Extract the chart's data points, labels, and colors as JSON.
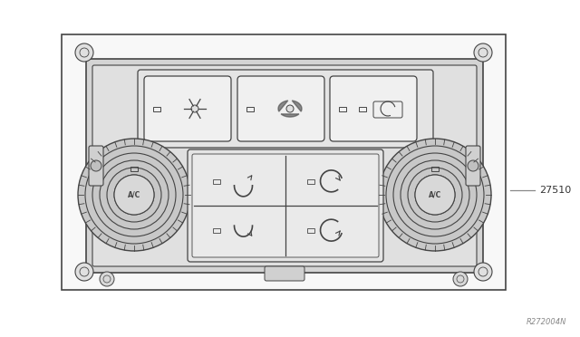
{
  "bg_color": "#ffffff",
  "line_color": "#444444",
  "fig_width": 6.4,
  "fig_height": 3.72,
  "label_27510": "27510",
  "label_code": "R272004N",
  "panel_bg": "#e8e8e8",
  "btn_bg": "#f2f2f2",
  "knob_dark": "#aaaaaa"
}
